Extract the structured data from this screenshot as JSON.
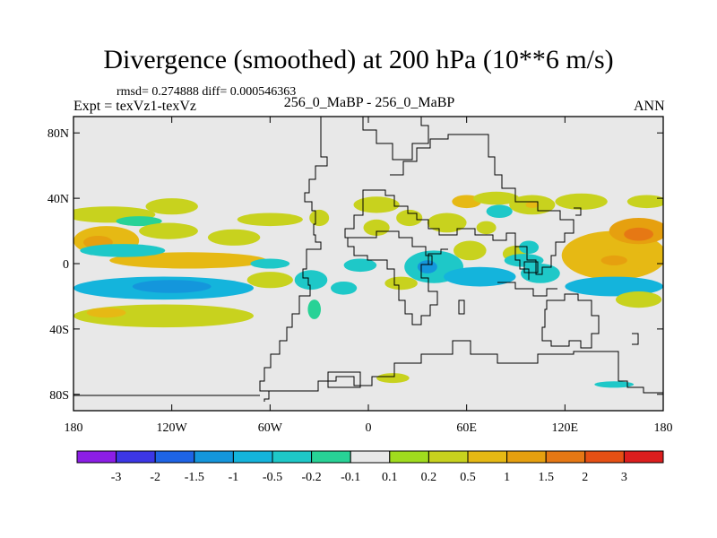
{
  "header": {
    "title": "Divergence (smoothed) at 200 hPa (10**6 m/s)",
    "stats": "rmsd= 0.274888 diff= 0.000546363",
    "experiment": "Expt = texVz1-texVz",
    "center_label": "256_0_MaBP - 256_0_MaBP",
    "period": "ANN"
  },
  "colors": {
    "background": "#e8e8e8",
    "coast": "#000000",
    "palette": [
      "#8c1ee6",
      "#3c37e6",
      "#1e64e6",
      "#1496dc",
      "#14b4dc",
      "#1ec8c8",
      "#28d296",
      "#e8e8e8",
      "#a0dc1e",
      "#c8d21e",
      "#e6b914",
      "#e6a00f",
      "#e67814",
      "#e65014",
      "#dc1e1e"
    ]
  },
  "chart_data": {
    "type": "heatmap",
    "title": "Divergence (smoothed) at 200 hPa (10**6 m/s)",
    "xlim": [
      -180,
      180
    ],
    "ylim": [
      -90,
      90
    ],
    "x_ticks": [
      {
        "value": -180,
        "label": "180"
      },
      {
        "value": -120,
        "label": "120W"
      },
      {
        "value": -60,
        "label": "60W"
      },
      {
        "value": 0,
        "label": "0"
      },
      {
        "value": 60,
        "label": "60E"
      },
      {
        "value": 120,
        "label": "120E"
      },
      {
        "value": 180,
        "label": "180"
      }
    ],
    "y_ticks": [
      {
        "value": 80,
        "label": "80N"
      },
      {
        "value": 40,
        "label": "40N"
      },
      {
        "value": 0,
        "label": "0"
      },
      {
        "value": -40,
        "label": "40S"
      },
      {
        "value": -80,
        "label": "80S"
      }
    ],
    "colorbar": {
      "levels": [
        -3,
        -2,
        -1.5,
        -1,
        -0.5,
        -0.2,
        -0.1,
        0.1,
        0.2,
        0.5,
        1,
        1.5,
        2,
        3
      ],
      "labels": [
        "-3",
        "-2",
        "-1.5",
        "-1",
        "-0.5",
        "-0.2",
        "-0.1",
        "0.1",
        "0.2",
        "0.5",
        "1",
        "1.5",
        "2",
        "3"
      ]
    },
    "blobs": [
      {
        "lon": -158,
        "lat": 30,
        "rlon": 28,
        "rlat": 5,
        "value": 0.25
      },
      {
        "lon": -120,
        "lat": 35,
        "rlon": 16,
        "rlat": 5,
        "value": 0.25
      },
      {
        "lon": -140,
        "lat": 26,
        "rlon": 14,
        "rlat": 3,
        "value": -0.15
      },
      {
        "lon": -160,
        "lat": 14,
        "rlon": 20,
        "rlat": 9,
        "value": 0.7
      },
      {
        "lon": -165,
        "lat": 13,
        "rlon": 9,
        "rlat": 4,
        "value": 1.4
      },
      {
        "lon": -122,
        "lat": 20,
        "rlon": 18,
        "rlat": 5,
        "value": 0.3
      },
      {
        "lon": -82,
        "lat": 16,
        "rlon": 16,
        "rlat": 5,
        "value": 0.4
      },
      {
        "lon": -60,
        "lat": 27,
        "rlon": 20,
        "rlat": 4,
        "value": 0.3
      },
      {
        "lon": -110,
        "lat": 2,
        "rlon": 48,
        "rlat": 5,
        "value": 0.6
      },
      {
        "lon": -110,
        "lat": 2,
        "rlon": 18,
        "rlat": 3,
        "value": 0.9
      },
      {
        "lon": -150,
        "lat": 8,
        "rlon": 26,
        "rlat": 4,
        "value": -0.25
      },
      {
        "lon": -60,
        "lat": 0,
        "rlon": 12,
        "rlat": 3,
        "value": -0.4
      },
      {
        "lon": -125,
        "lat": -15,
        "rlon": 55,
        "rlat": 7,
        "value": -0.9
      },
      {
        "lon": -120,
        "lat": -14,
        "rlon": 24,
        "rlat": 4,
        "value": -1.3
      },
      {
        "lon": -60,
        "lat": -10,
        "rlon": 14,
        "rlat": 5,
        "value": 0.4
      },
      {
        "lon": -125,
        "lat": -32,
        "rlon": 55,
        "rlat": 7,
        "value": 0.4
      },
      {
        "lon": -160,
        "lat": -30,
        "rlon": 12,
        "rlat": 3,
        "value": 0.7
      },
      {
        "lon": -35,
        "lat": -10,
        "rlon": 10,
        "rlat": 6,
        "value": -0.5
      },
      {
        "lon": -33,
        "lat": -28,
        "rlon": 4,
        "rlat": 6,
        "value": -0.2
      },
      {
        "lon": -30,
        "lat": 28,
        "rlon": 6,
        "rlat": 5,
        "value": 0.3
      },
      {
        "lon": 5,
        "lat": 36,
        "rlon": 14,
        "rlat": 5,
        "value": 0.25
      },
      {
        "lon": 5,
        "lat": 22,
        "rlon": 8,
        "rlat": 5,
        "value": 0.25
      },
      {
        "lon": -5,
        "lat": -1,
        "rlon": 10,
        "rlat": 4,
        "value": -0.3
      },
      {
        "lon": -15,
        "lat": -15,
        "rlon": 8,
        "rlat": 4,
        "value": -0.3
      },
      {
        "lon": 20,
        "lat": -12,
        "rlon": 10,
        "rlat": 4,
        "value": 0.3
      },
      {
        "lon": 15,
        "lat": -70,
        "rlon": 10,
        "rlat": 3,
        "value": 0.3
      },
      {
        "lon": 25,
        "lat": 28,
        "rlon": 8,
        "rlat": 5,
        "value": 0.25
      },
      {
        "lon": 48,
        "lat": 25,
        "rlon": 12,
        "rlat": 6,
        "value": 0.25
      },
      {
        "lon": 60,
        "lat": 38,
        "rlon": 9,
        "rlat": 4,
        "value": 0.5
      },
      {
        "lon": 78,
        "lat": 40,
        "rlon": 14,
        "rlat": 4,
        "value": 0.3
      },
      {
        "lon": 80,
        "lat": 32,
        "rlon": 8,
        "rlat": 4,
        "value": -0.3
      },
      {
        "lon": 100,
        "lat": 36,
        "rlon": 14,
        "rlat": 6,
        "value": 0.35
      },
      {
        "lon": 100,
        "lat": 36,
        "rlon": 4,
        "rlat": 2,
        "value": 0.7
      },
      {
        "lon": 130,
        "lat": 38,
        "rlon": 16,
        "rlat": 5,
        "value": 0.3
      },
      {
        "lon": 170,
        "lat": 38,
        "rlon": 12,
        "rlat": 4,
        "value": 0.2
      },
      {
        "lon": 62,
        "lat": 8,
        "rlon": 10,
        "rlat": 6,
        "value": 0.35
      },
      {
        "lon": 72,
        "lat": 22,
        "rlon": 6,
        "rlat": 4,
        "value": 0.3
      },
      {
        "lon": 90,
        "lat": 6,
        "rlon": 8,
        "rlat": 5,
        "value": 0.35
      },
      {
        "lon": 40,
        "lat": -2,
        "rlon": 18,
        "rlat": 10,
        "value": -0.5
      },
      {
        "lon": 36,
        "lat": -2,
        "rlon": 6,
        "rlat": 4,
        "value": -1.1
      },
      {
        "lon": 68,
        "lat": -8,
        "rlon": 22,
        "rlat": 6,
        "value": -0.6
      },
      {
        "lon": 105,
        "lat": -6,
        "rlon": 12,
        "rlat": 6,
        "value": -0.5
      },
      {
        "lon": 98,
        "lat": 10,
        "rlon": 6,
        "rlat": 4,
        "value": -0.4
      },
      {
        "lon": 95,
        "lat": 2,
        "rlon": 12,
        "rlat": 4,
        "value": -0.25
      },
      {
        "lon": 150,
        "lat": 5,
        "rlon": 32,
        "rlat": 15,
        "value": 0.5
      },
      {
        "lon": 152,
        "lat": 2,
        "rlon": 18,
        "rlat": 7,
        "value": 0.95
      },
      {
        "lon": 150,
        "lat": 2,
        "rlon": 8,
        "rlat": 3,
        "value": 1.3
      },
      {
        "lon": 165,
        "lat": 20,
        "rlon": 18,
        "rlat": 8,
        "value": 1.2
      },
      {
        "lon": 165,
        "lat": 18,
        "rlon": 9,
        "rlat": 4,
        "value": 1.6
      },
      {
        "lon": 150,
        "lat": -14,
        "rlon": 30,
        "rlat": 6,
        "value": -0.7
      },
      {
        "lon": 165,
        "lat": -22,
        "rlon": 14,
        "rlat": 5,
        "value": 0.25
      },
      {
        "lon": 150,
        "lat": -74,
        "rlon": 12,
        "rlat": 2,
        "value": -0.3
      }
    ]
  }
}
